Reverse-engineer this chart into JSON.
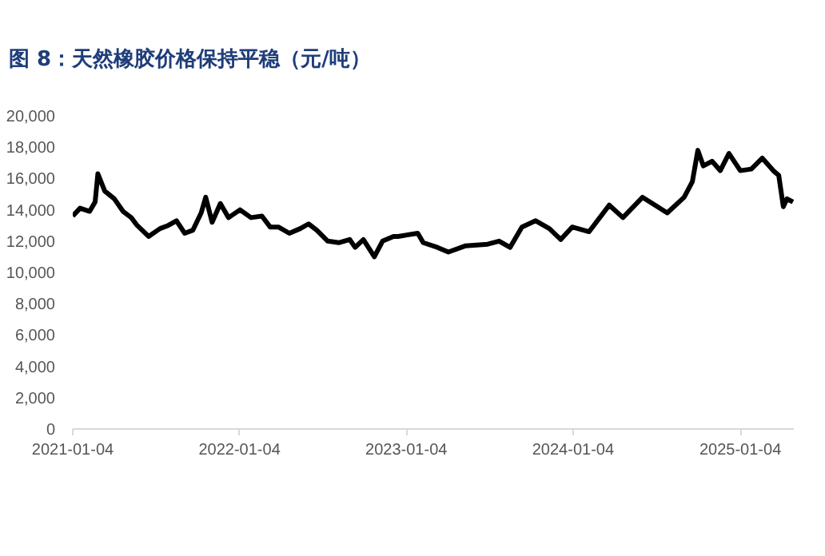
{
  "chart_data": {
    "type": "line",
    "title": "图 8：天然橡胶价格保持平稳（元/吨）",
    "x": [
      "2021-01-04",
      "2021-01-20",
      "2021-02-10",
      "2021-02-22",
      "2021-02-28",
      "2021-03-15",
      "2021-04-05",
      "2021-04-24",
      "2021-05-12",
      "2021-05-25",
      "2021-06-19",
      "2021-07-14",
      "2021-08-01",
      "2021-08-19",
      "2021-09-06",
      "2021-09-24",
      "2021-10-12",
      "2021-10-22",
      "2021-11-05",
      "2021-11-23",
      "2021-12-11",
      "2022-01-05",
      "2022-01-29",
      "2022-02-22",
      "2022-03-12",
      "2022-03-30",
      "2022-04-23",
      "2022-05-17",
      "2022-06-04",
      "2022-06-22",
      "2022-07-16",
      "2022-08-09",
      "2022-09-02",
      "2022-09-14",
      "2022-10-02",
      "2022-10-26",
      "2022-11-13",
      "2022-12-07",
      "2022-12-17",
      "2023-01-29",
      "2023-02-10",
      "2023-03-13",
      "2023-04-06",
      "2023-05-14",
      "2023-07-01",
      "2023-07-26",
      "2023-08-19",
      "2023-09-14",
      "2023-10-14",
      "2023-11-13",
      "2023-12-08",
      "2024-01-02",
      "2024-02-08",
      "2024-03-23",
      "2024-04-22",
      "2024-06-04",
      "2024-07-28",
      "2024-09-03",
      "2024-09-21",
      "2024-10-03",
      "2024-10-15",
      "2024-11-03",
      "2024-11-21",
      "2024-12-10",
      "2025-01-04",
      "2025-01-28",
      "2025-02-21",
      "2025-03-17",
      "2025-03-29",
      "2025-04-08",
      "2025-04-16",
      "2025-04-29"
    ],
    "series": [
      {
        "color": "#000000",
        "values": [
          13600,
          14100,
          13900,
          14500,
          16300,
          15200,
          14700,
          13900,
          13500,
          13000,
          12300,
          12800,
          13000,
          13300,
          12500,
          12700,
          13800,
          14800,
          13200,
          14400,
          13500,
          14000,
          13500,
          13600,
          12900,
          12900,
          12500,
          12800,
          13100,
          12700,
          12000,
          11900,
          12100,
          11600,
          12100,
          11000,
          12000,
          12300,
          12300,
          12500,
          11900,
          11600,
          11300,
          11700,
          11800,
          12000,
          11600,
          12900,
          13300,
          12800,
          12100,
          12900,
          12600,
          14300,
          13500,
          14800,
          13800,
          14800,
          15800,
          17800,
          16800,
          17100,
          16500,
          17600,
          16500,
          16600,
          17300,
          16500,
          16200,
          14200,
          14700,
          14500
        ]
      }
    ],
    "xlim": [
      "2021-01-04",
      "2025-05-01"
    ],
    "xticks": [
      "2021-01-04",
      "2022-01-04",
      "2023-01-04",
      "2024-01-04",
      "2025-01-04"
    ],
    "ylim": [
      0,
      20000
    ],
    "yticks": [
      {
        "value": 0,
        "label": "0"
      },
      {
        "value": 2000,
        "label": "2,000"
      },
      {
        "value": 4000,
        "label": "4,000"
      },
      {
        "value": 6000,
        "label": "6,000"
      },
      {
        "value": 8000,
        "label": "8,000"
      },
      {
        "value": 10000,
        "label": "10,000"
      },
      {
        "value": 12000,
        "label": "12,000"
      },
      {
        "value": 14000,
        "label": "14,000"
      },
      {
        "value": 16000,
        "label": "16,000"
      },
      {
        "value": 18000,
        "label": "18,000"
      },
      {
        "value": 20000,
        "label": "20,000"
      }
    ],
    "grid": false
  }
}
